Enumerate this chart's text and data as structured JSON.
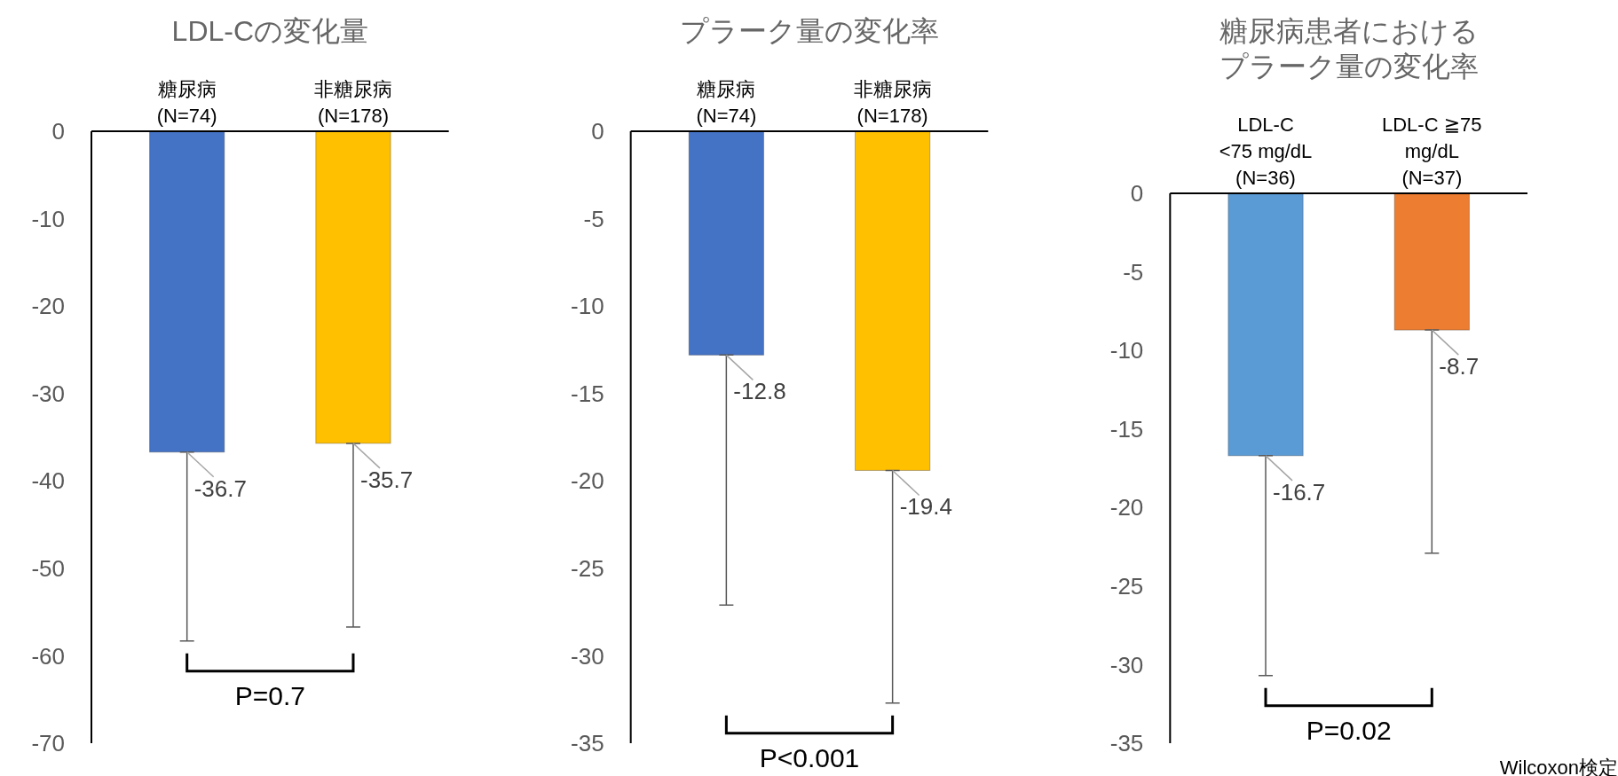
{
  "chart_data": [
    {
      "type": "bar",
      "title": "LDL-Cの変化量",
      "categories": [
        "糖尿病\n(N=74)",
        "非糖尿病\n(N=178)"
      ],
      "values": [
        -36.7,
        -35.7
      ],
      "colors": [
        "#4472c4",
        "#ffc000"
      ],
      "errors": [
        [
          -58.3,
          -36.7
        ],
        [
          -56.7,
          -35.7
        ]
      ],
      "ylim": [
        -70,
        0
      ],
      "yticks": [
        0,
        -10,
        -20,
        -30,
        -40,
        -50,
        -60,
        -70
      ],
      "data_labels": true,
      "annotations": [
        "P=0.7"
      ]
    },
    {
      "type": "bar",
      "title": "プラーク量の変化率",
      "categories": [
        "糖尿病\n(N=74)",
        "非糖尿病\n(N=178)"
      ],
      "values": [
        -12.8,
        -19.4
      ],
      "colors": [
        "#4472c4",
        "#ffc000"
      ],
      "errors": [
        [
          -27.1,
          -12.8
        ],
        [
          -32.7,
          -19.4
        ]
      ],
      "ylim": [
        -35,
        0
      ],
      "yticks": [
        0,
        -5,
        -10,
        -15,
        -20,
        -25,
        -30,
        -35
      ],
      "data_labels": true,
      "annotations": [
        "P<0.001"
      ]
    },
    {
      "type": "bar",
      "title": "糖尿病患者におけるプラーク量の変化率",
      "categories": [
        "LDL-C\n<75 mg/dL\n(N=36)",
        "LDL-C ≧75\nmg/dL\n(N=37)"
      ],
      "values": [
        -16.7,
        -8.7
      ],
      "colors": [
        "#5b9bd5",
        "#ed7d31"
      ],
      "errors": [
        [
          -30.7,
          -16.7
        ],
        [
          -22.9,
          -8.7
        ]
      ],
      "ylim": [
        -35,
        0
      ],
      "yticks": [
        0,
        -5,
        -10,
        -15,
        -20,
        -25,
        -30,
        -35
      ],
      "data_labels": true,
      "annotations": [
        "P=0.02",
        "Wilcoxon検定"
      ]
    }
  ]
}
